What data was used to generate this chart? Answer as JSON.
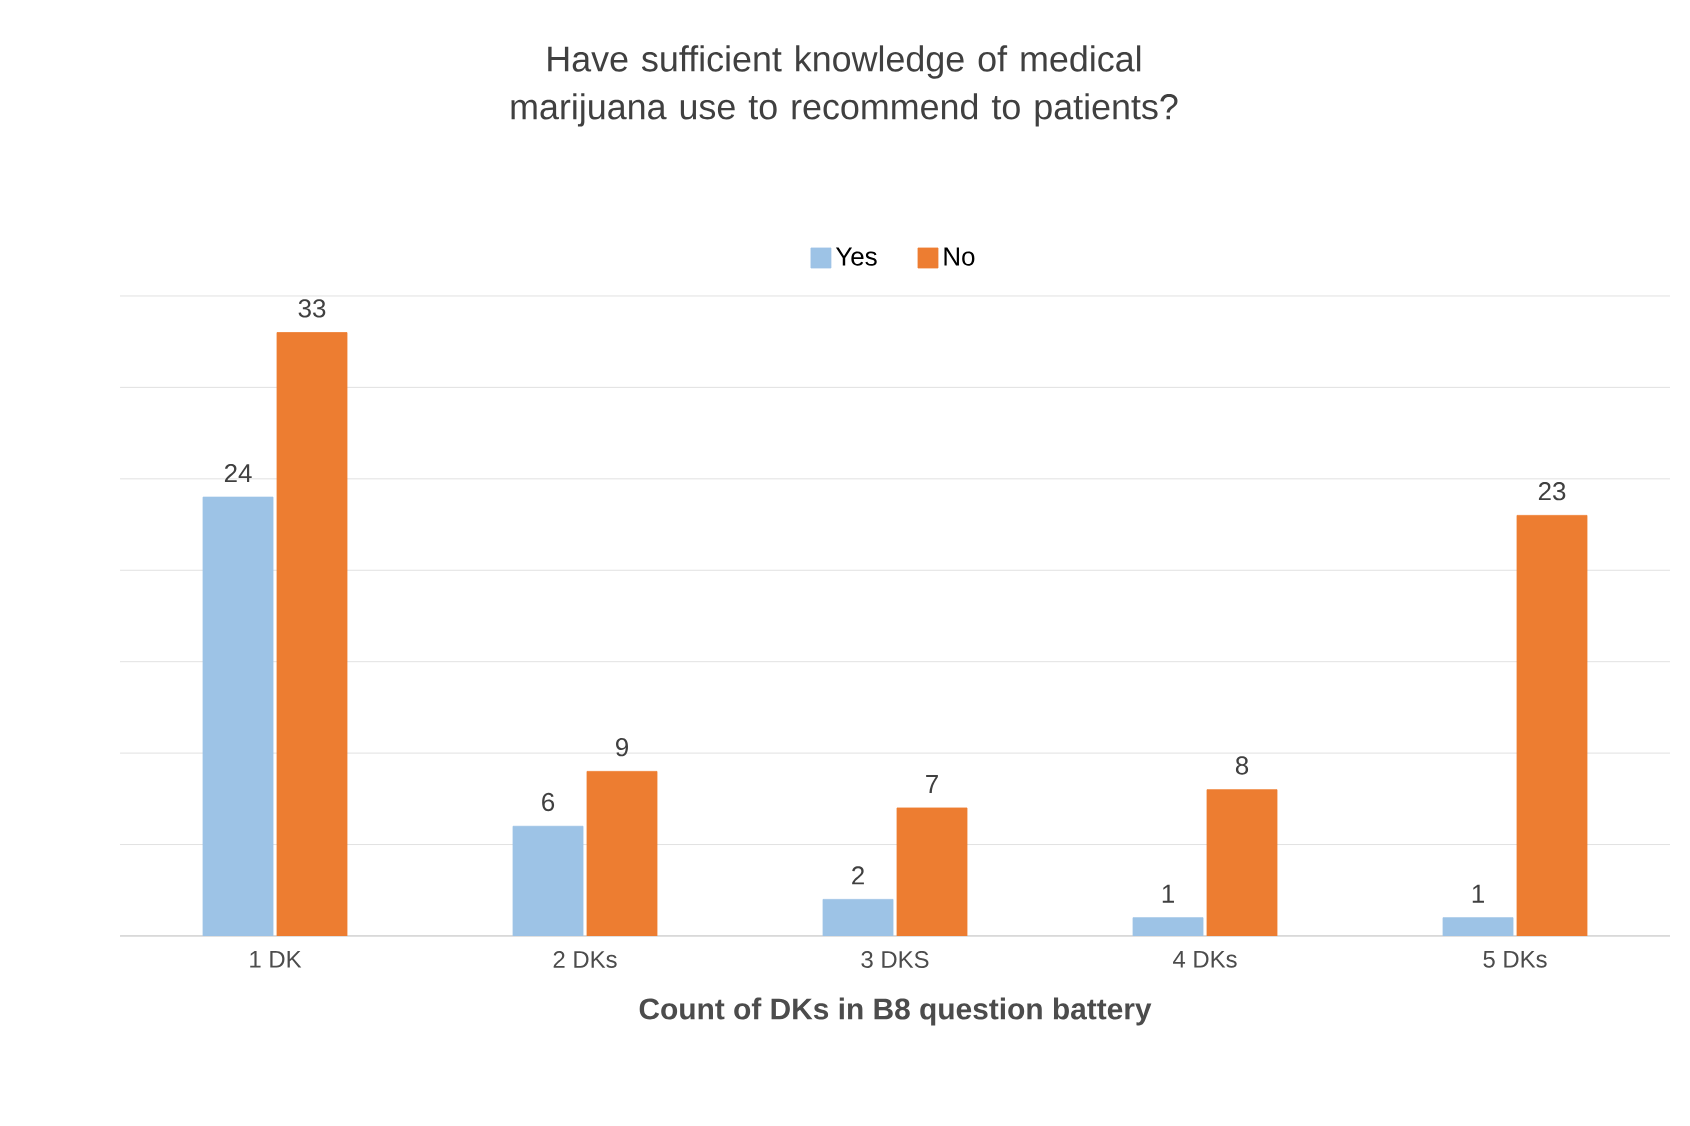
{
  "chart_data": {
    "type": "bar",
    "title": "Have sufficient knowledge of medical marijuana use to recommend to patients?",
    "xlabel": "Count of DKs in B8 question battery",
    "categories": [
      "1 DK",
      "2 DKs",
      "3 DKS",
      "4 DKs",
      "5 DKs"
    ],
    "series": [
      {
        "name": "Yes",
        "color": "#9dc3e6",
        "values": [
          24,
          6,
          2,
          1,
          1
        ]
      },
      {
        "name": "No",
        "color": "#ed7d31",
        "values": [
          33,
          9,
          7,
          8,
          23
        ]
      }
    ],
    "ylim": [
      0,
      35
    ],
    "yticks": [
      {
        "value": 0,
        "label": null
      },
      {
        "value": 5,
        "label": null
      },
      {
        "value": 10,
        "label": null
      },
      {
        "value": 15,
        "label": null
      },
      {
        "value": 20,
        "label": null
      },
      {
        "value": 25,
        "label": null
      },
      {
        "value": 30,
        "label": null
      },
      {
        "value": 35,
        "label": null
      }
    ],
    "grid": "y",
    "legend": "top",
    "tick_labels": "x",
    "data_labels": true
  }
}
